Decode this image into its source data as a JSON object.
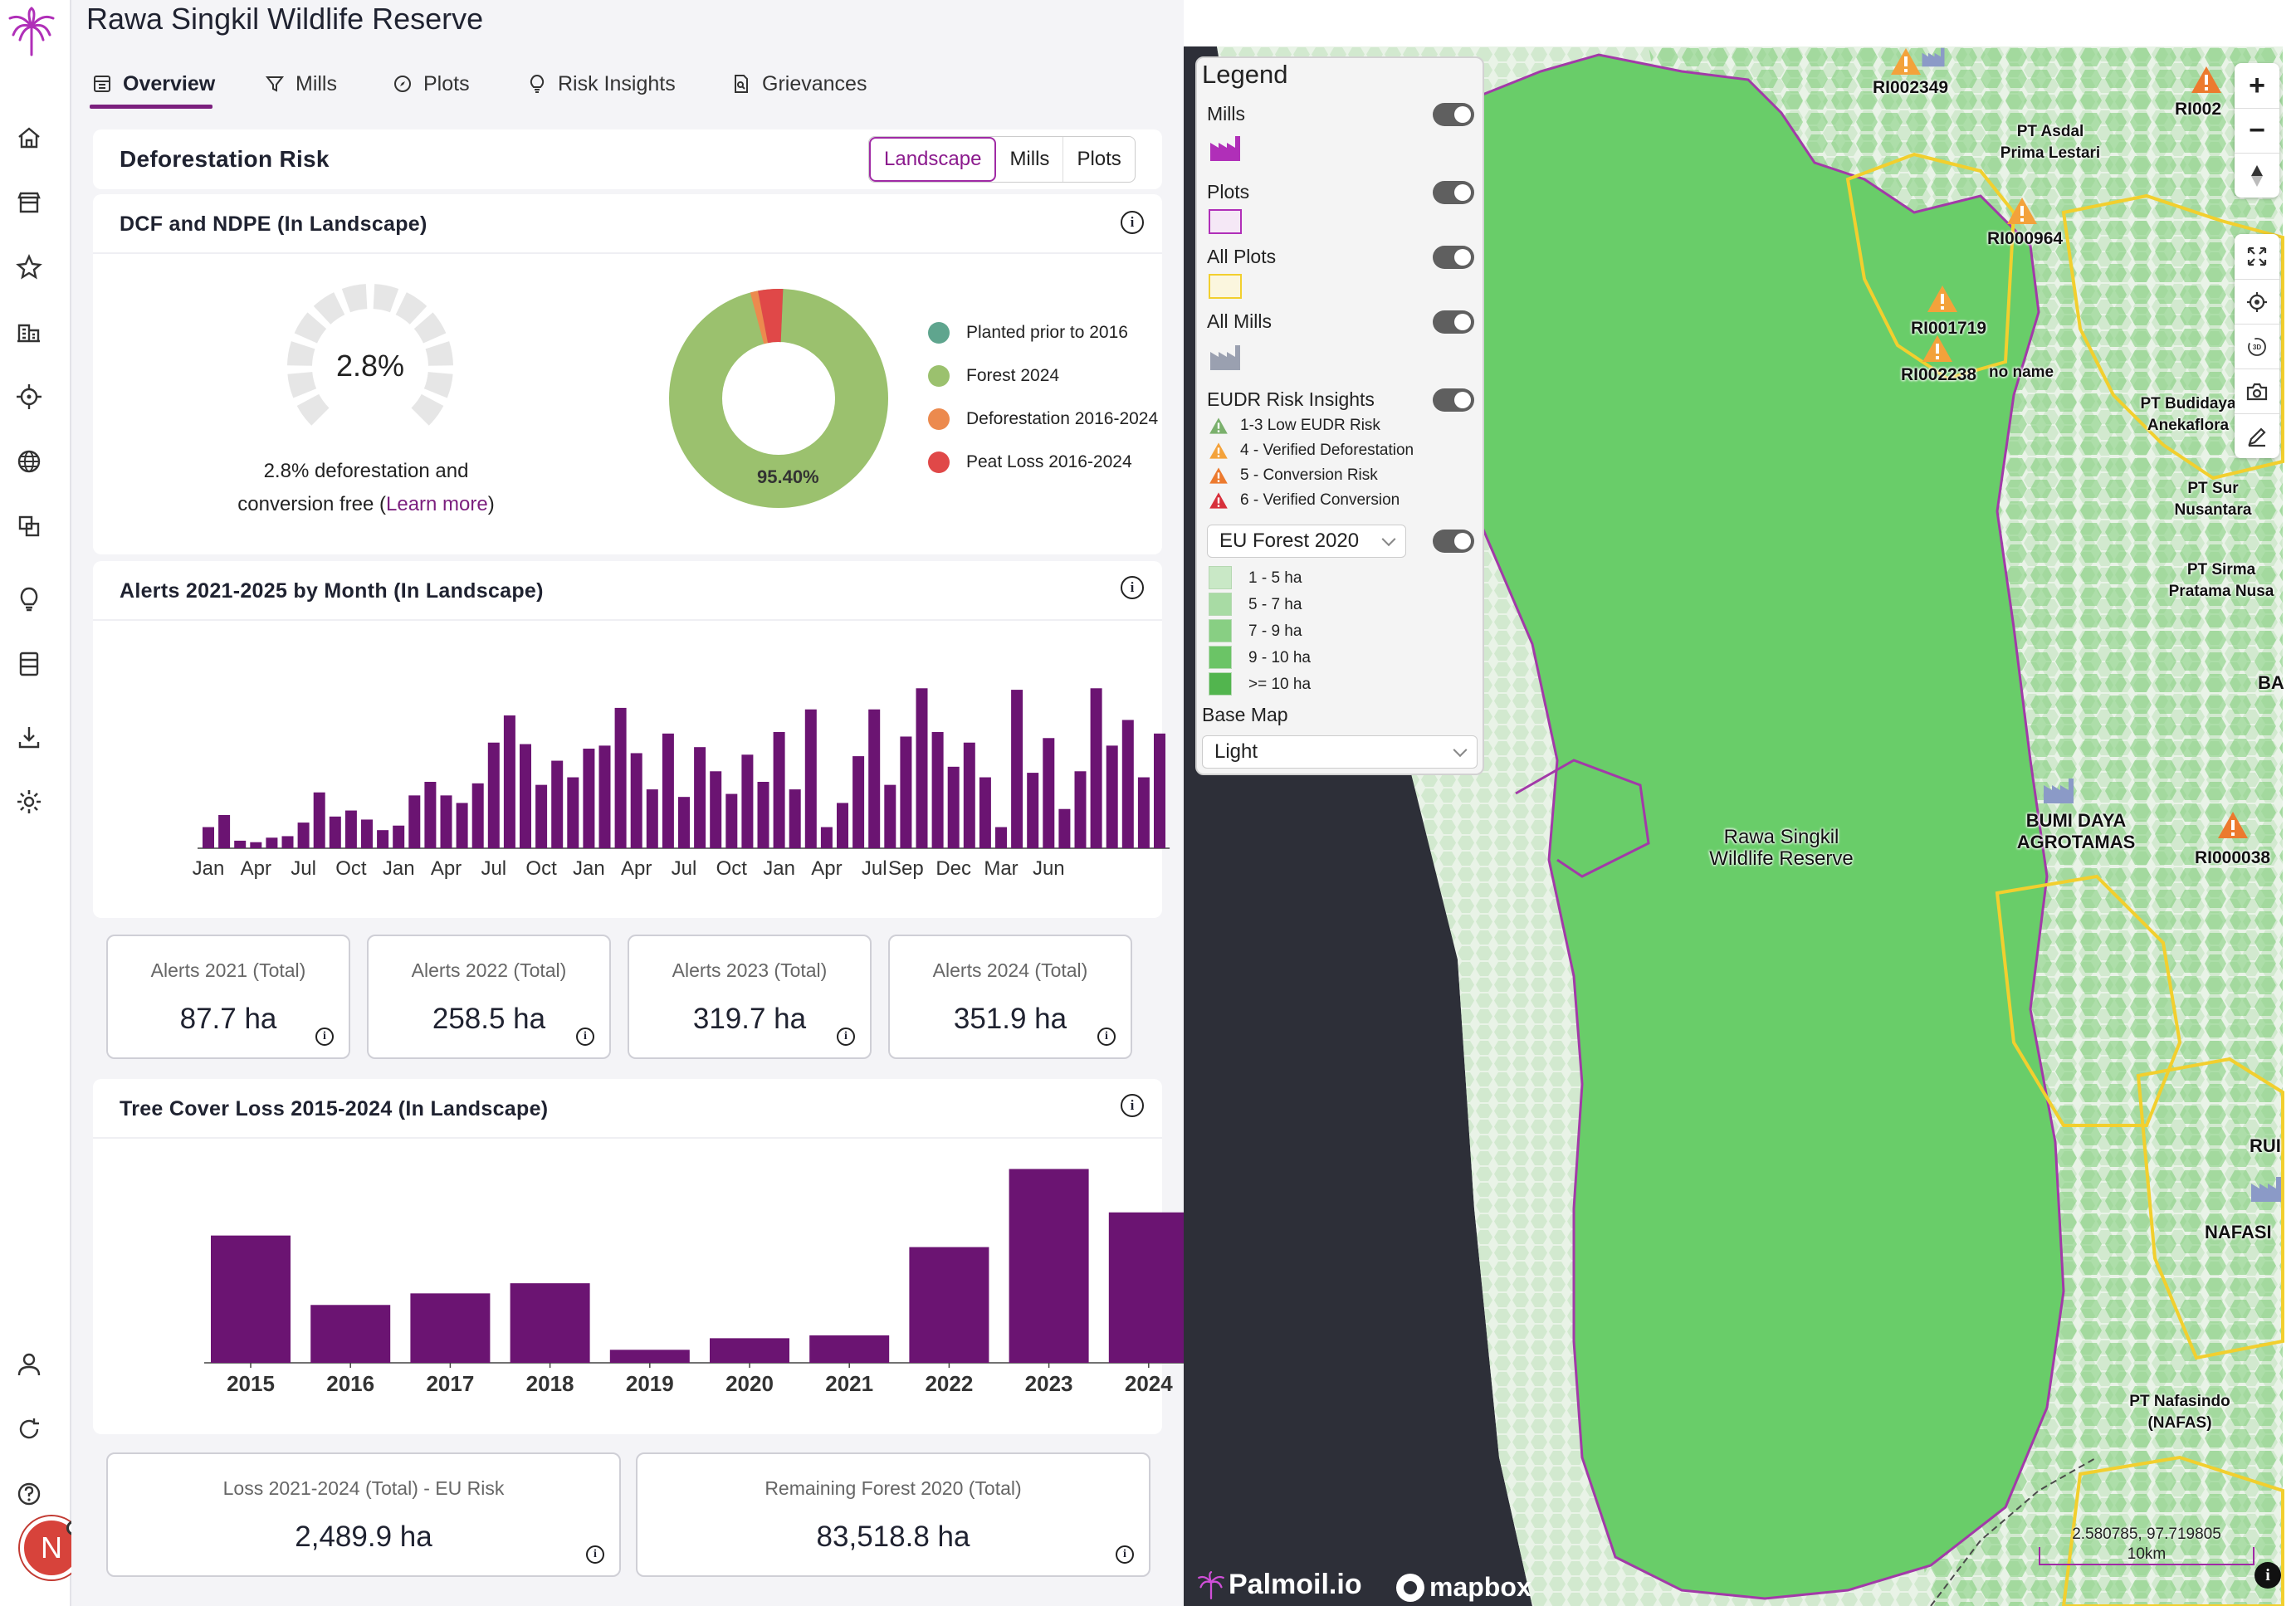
{
  "app": {
    "title": "Rawa Singkil Wildlife Reserve"
  },
  "tabs": [
    {
      "label": "Overview",
      "icon": "overview-icon",
      "active": true
    },
    {
      "label": "Mills",
      "icon": "funnel-icon"
    },
    {
      "label": "Plots",
      "icon": "compass-icon"
    },
    {
      "label": "Risk Insights",
      "icon": "lightbulb-icon"
    },
    {
      "label": "Grievances",
      "icon": "document-search-icon"
    }
  ],
  "sidebar": {
    "items": [
      "home-icon",
      "store-icon",
      "star-icon",
      "buildings-icon",
      "crosshair-icon",
      "globe-icon",
      "layers-icon",
      "lightbulb-icon",
      "database-icon",
      "download-icon",
      "settings-icon",
      "user-icon",
      "refresh-icon",
      "help-icon"
    ],
    "avatar_initial": "N"
  },
  "deforestation": {
    "title": "Deforestation Risk",
    "segments": [
      "Landscape",
      "Mills",
      "Plots"
    ],
    "active_segment": "Landscape"
  },
  "dcf": {
    "title": "DCF and NDPE (In Landscape)",
    "gauge_value": "2.8%",
    "desc_line1": "2.8% deforestation and",
    "desc_line2_prefix": "conversion free (",
    "learn_more": "Learn more",
    "desc_line2_suffix": ")",
    "donut_label": "95.40%",
    "legend": [
      {
        "label": "Planted prior to 2016",
        "color": "#5fa58e"
      },
      {
        "label": "Forest 2024",
        "color": "#9bc16e"
      },
      {
        "label": "Deforestation 2016-2024",
        "color": "#ec8a4e"
      },
      {
        "label": "Peat Loss 2016-2024",
        "color": "#e04848"
      }
    ]
  },
  "alerts_chart": {
    "title": "Alerts 2021-2025 by Month (In Landscape)"
  },
  "alert_stats": [
    {
      "label": "Alerts 2021 (Total)",
      "value": "87.7 ha"
    },
    {
      "label": "Alerts 2022 (Total)",
      "value": "258.5 ha"
    },
    {
      "label": "Alerts 2023 (Total)",
      "value": "319.7 ha"
    },
    {
      "label": "Alerts 2024 (Total)",
      "value": "351.9 ha"
    }
  ],
  "loss_chart": {
    "title": "Tree Cover Loss 2015-2024 (In Landscape)"
  },
  "loss_stats": [
    {
      "label": "Loss 2021-2024 (Total) - EU Risk",
      "value": "2,489.9 ha"
    },
    {
      "label": "Remaining Forest 2020 (Total)",
      "value": "83,518.8 ha"
    }
  ],
  "chart_data": [
    {
      "type": "bar",
      "title": "Alerts 2021-2025 by Month (In Landscape)",
      "tick_labels": [
        "Jan",
        "Apr",
        "Jul",
        "Oct",
        "Jan",
        "Apr",
        "Jul",
        "Oct",
        "Jan",
        "Apr",
        "Jul",
        "Oct",
        "Jan",
        "Apr",
        "Jul",
        "Sep",
        "Dec",
        "Mar",
        "Jun"
      ],
      "values": [
        14,
        22,
        5,
        4,
        7,
        8,
        17,
        37,
        21,
        25,
        19,
        12,
        15,
        35,
        44,
        35,
        30,
        43,
        70,
        88,
        69,
        42,
        58,
        47,
        66,
        68,
        93,
        63,
        39,
        76,
        34,
        67,
        51,
        36,
        62,
        44,
        77,
        39,
        92,
        14,
        30,
        61,
        92,
        42,
        74,
        106,
        77,
        54,
        70,
        47,
        14,
        105,
        50,
        73,
        26,
        51,
        106,
        68,
        85,
        47,
        76
      ],
      "color": "#6b1472"
    },
    {
      "type": "bar",
      "title": "Tree Cover Loss 2015-2024 (In Landscape)",
      "categories": [
        "2015",
        "2016",
        "2017",
        "2018",
        "2019",
        "2020",
        "2021",
        "2022",
        "2023",
        "2024"
      ],
      "values": [
        88,
        40,
        48,
        55,
        9,
        17,
        19,
        80,
        134,
        104
      ],
      "color": "#6b1472"
    }
  ],
  "map": {
    "legend": {
      "title": "Legend",
      "mills_label": "Mills",
      "plots_label": "Plots",
      "all_plots_label": "All Plots",
      "all_mills_label": "All Mills",
      "eudr_label": "EUDR Risk Insights",
      "risks": [
        {
          "label": "1-3 Low EUDR Risk",
          "color": "#7ab06c"
        },
        {
          "label": "4 - Verified Deforestation",
          "color": "#f3a23b"
        },
        {
          "label": "5 - Conversion Risk",
          "color": "#ec7a2e"
        },
        {
          "label": "6 - Verified Conversion",
          "color": "#d7303b"
        }
      ],
      "forest_select": "EU Forest 2020",
      "forest_bins": [
        {
          "label": "1 - 5 ha",
          "color": "#c9e8c6"
        },
        {
          "label": "5 - 7 ha",
          "color": "#a8dba4"
        },
        {
          "label": "7 - 9 ha",
          "color": "#88cf83"
        },
        {
          "label": "9 - 10 ha",
          "color": "#6bc466"
        },
        {
          "label": ">= 10 ha",
          "color": "#52b54e"
        }
      ],
      "basemap_label": "Base Map",
      "basemap_value": "Light"
    },
    "labels": {
      "reserve": "Rawa Singkil\nWildlife Reserve",
      "pt_asdal": "PT Asdal\nPrima Lestari",
      "pt_budidaya": "PT Budidaya\nAnekaflora",
      "pt_sur": "PT Sur\nNusantara",
      "pt_sirma": "PT Sirma\nPratama Nusa",
      "bumi": "BUMI DAYA\nAGROTAMAS",
      "nafas": "PT Nafasindo\n(NAFAS)",
      "nafasi": "NAFASI",
      "rui": "RUI",
      "ba": "BA",
      "no_name": "no name",
      "r1": "RI002349",
      "r2": "RI002",
      "r3": "RI000964",
      "r4": "RI001719",
      "r5": "RI002238",
      "r6": "RI000038"
    },
    "coords": "2.580785, 97.719805",
    "scale": "10km",
    "brand": "Palmoil.io",
    "mapbox": "mapbox"
  }
}
